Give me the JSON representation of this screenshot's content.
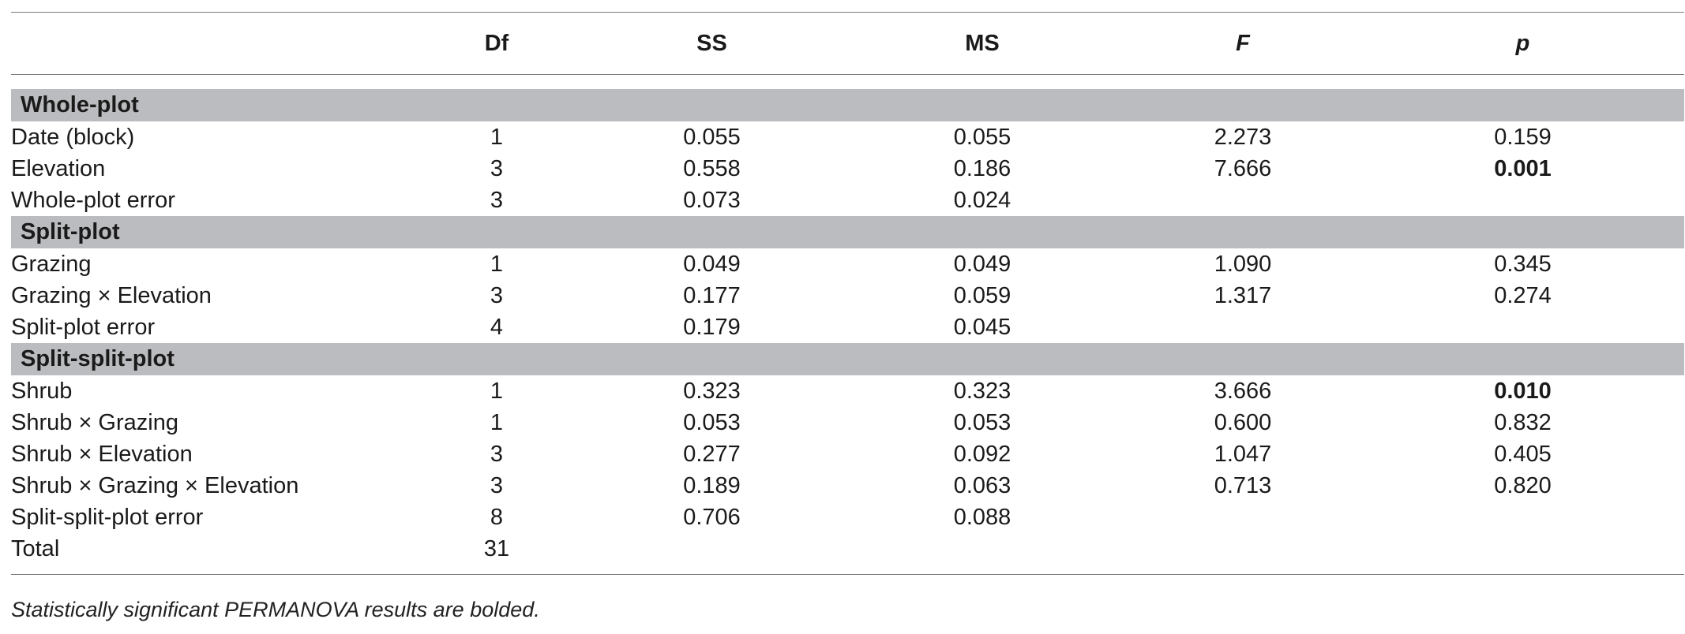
{
  "table": {
    "headers": [
      "",
      "Df",
      "SS",
      "MS",
      "F",
      "p"
    ],
    "sections": [
      {
        "title": "Whole-plot",
        "rows": [
          {
            "label": "Date (block)",
            "df": "1",
            "ss": "0.055",
            "ms": "0.055",
            "f": "2.273",
            "p": "0.159",
            "p_bold": false
          },
          {
            "label": "Elevation",
            "df": "3",
            "ss": "0.558",
            "ms": "0.186",
            "f": "7.666",
            "p": "0.001",
            "p_bold": true
          },
          {
            "label": "Whole-plot error",
            "df": "3",
            "ss": "0.073",
            "ms": "0.024",
            "f": "",
            "p": "",
            "p_bold": false
          }
        ]
      },
      {
        "title": "Split-plot",
        "rows": [
          {
            "label": "Grazing",
            "df": "1",
            "ss": "0.049",
            "ms": "0.049",
            "f": "1.090",
            "p": "0.345",
            "p_bold": false
          },
          {
            "label": "Grazing × Elevation",
            "df": "3",
            "ss": "0.177",
            "ms": "0.059",
            "f": "1.317",
            "p": "0.274",
            "p_bold": false
          },
          {
            "label": "Split-plot error",
            "df": "4",
            "ss": "0.179",
            "ms": "0.045",
            "f": "",
            "p": "",
            "p_bold": false
          }
        ]
      },
      {
        "title": "Split-split-plot",
        "rows": [
          {
            "label": "Shrub",
            "df": "1",
            "ss": "0.323",
            "ms": "0.323",
            "f": "3.666",
            "p": "0.010",
            "p_bold": true
          },
          {
            "label": "Shrub × Grazing",
            "df": "1",
            "ss": "0.053",
            "ms": "0.053",
            "f": "0.600",
            "p": "0.832",
            "p_bold": false
          },
          {
            "label": "Shrub × Elevation",
            "df": "3",
            "ss": "0.277",
            "ms": "0.092",
            "f": "1.047",
            "p": "0.405",
            "p_bold": false
          },
          {
            "label": "Shrub × Grazing × Elevation",
            "df": "3",
            "ss": "0.189",
            "ms": "0.063",
            "f": "0.713",
            "p": "0.820",
            "p_bold": false
          },
          {
            "label": "Split-split-plot error",
            "df": "8",
            "ss": "0.706",
            "ms": "0.088",
            "f": "",
            "p": "",
            "p_bold": false
          },
          {
            "label": "Total",
            "df": "31",
            "ss": "",
            "ms": "",
            "f": "",
            "p": "",
            "p_bold": false
          }
        ]
      }
    ]
  },
  "footnote": "Statistically significant PERMANOVA results are bolded.",
  "colors": {
    "section_band": "#bbbcbf",
    "rule": "#7a7a7a"
  }
}
